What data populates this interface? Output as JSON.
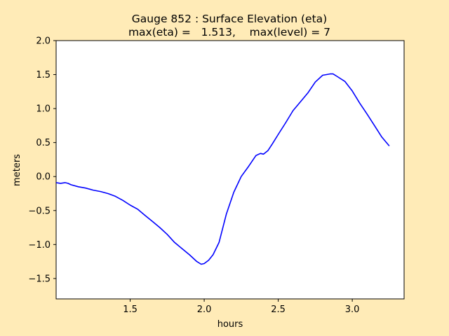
{
  "chart_data": {
    "type": "line",
    "title": "Gauge 852 : Surface Elevation (eta)",
    "subtitle": "max(eta) =   1.513,    max(level) = 7",
    "xlabel": "hours",
    "ylabel": "meters",
    "xlim": [
      1.0,
      3.35
    ],
    "ylim": [
      -1.8,
      2.0
    ],
    "xticks": [
      1.5,
      2.0,
      2.5,
      3.0
    ],
    "xtick_labels": [
      "1.5",
      "2.0",
      "2.5",
      "3.0"
    ],
    "yticks": [
      -1.5,
      -1.0,
      -0.5,
      0.0,
      0.5,
      1.0,
      1.5,
      2.0
    ],
    "ytick_labels": [
      "−1.5",
      "−1.0",
      "−0.5",
      "0.0",
      "0.5",
      "1.0",
      "1.5",
      "2.0"
    ],
    "grid": false,
    "background": "#ffebb7",
    "plot_background": "#ffffff",
    "line_color": "#0000ff",
    "series": [
      {
        "x": [
          1.0,
          1.03,
          1.06,
          1.08,
          1.1,
          1.15,
          1.2,
          1.25,
          1.3,
          1.35,
          1.4,
          1.45,
          1.5,
          1.55,
          1.6,
          1.65,
          1.7,
          1.75,
          1.8,
          1.85,
          1.9,
          1.95,
          1.98,
          2.0,
          2.03,
          2.06,
          2.1,
          2.15,
          2.2,
          2.25,
          2.3,
          2.35,
          2.38,
          2.4,
          2.43,
          2.46,
          2.5,
          2.55,
          2.6,
          2.65,
          2.7,
          2.75,
          2.8,
          2.85,
          2.87,
          2.9,
          2.95,
          3.0,
          3.05,
          3.1,
          3.15,
          3.2,
          3.25
        ],
        "y": [
          -0.09,
          -0.1,
          -0.09,
          -0.1,
          -0.12,
          -0.15,
          -0.17,
          -0.2,
          -0.22,
          -0.25,
          -0.29,
          -0.35,
          -0.42,
          -0.48,
          -0.57,
          -0.66,
          -0.75,
          -0.85,
          -0.97,
          -1.06,
          -1.15,
          -1.25,
          -1.29,
          -1.28,
          -1.23,
          -1.15,
          -0.97,
          -0.55,
          -0.23,
          0.0,
          0.15,
          0.31,
          0.34,
          0.33,
          0.38,
          0.48,
          0.62,
          0.79,
          0.97,
          1.1,
          1.23,
          1.39,
          1.49,
          1.51,
          1.51,
          1.47,
          1.4,
          1.26,
          1.08,
          0.92,
          0.75,
          0.58,
          0.45
        ]
      }
    ]
  }
}
